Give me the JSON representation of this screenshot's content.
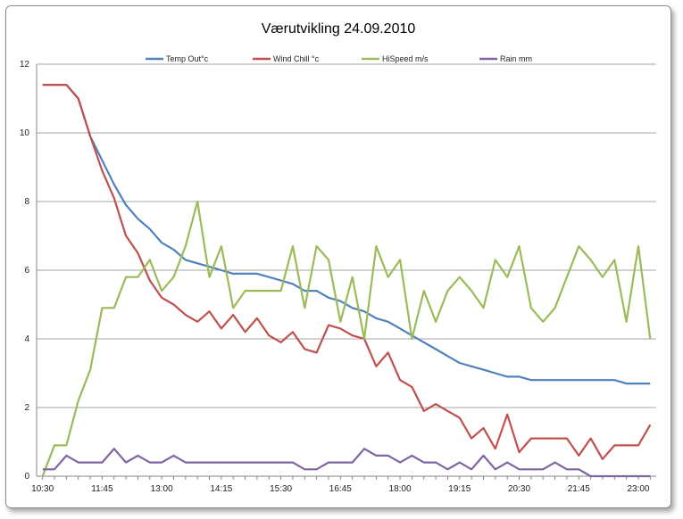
{
  "chart_data": {
    "type": "line",
    "title": "Værutvikling 24.09.2010",
    "xlabel": "",
    "ylabel": "",
    "ylim": [
      0,
      12
    ],
    "yticks": [
      "0",
      "2",
      "4",
      "6",
      "8",
      "10",
      "12"
    ],
    "x_tick_labels": [
      "10:30",
      "11:45",
      "13:00",
      "14:15",
      "15:30",
      "16:45",
      "18:00",
      "19:15",
      "20:30",
      "21:45",
      "23:00"
    ],
    "x": [
      "10:30",
      "10:45",
      "11:00",
      "11:15",
      "11:30",
      "11:45",
      "12:00",
      "12:15",
      "12:30",
      "12:45",
      "13:00",
      "13:15",
      "13:30",
      "13:45",
      "14:00",
      "14:15",
      "14:30",
      "14:45",
      "15:00",
      "15:15",
      "15:30",
      "15:45",
      "16:00",
      "16:15",
      "16:30",
      "16:45",
      "17:00",
      "17:15",
      "17:30",
      "17:45",
      "18:00",
      "18:15",
      "18:30",
      "18:45",
      "19:00",
      "19:15",
      "19:30",
      "19:45",
      "20:00",
      "20:15",
      "20:30",
      "20:45",
      "21:00",
      "21:15",
      "21:30",
      "21:45",
      "22:00",
      "22:15",
      "22:30",
      "22:45",
      "23:00",
      "23:15"
    ],
    "grid": true,
    "legend_position": "top",
    "series": [
      {
        "name": "Temp Out°c",
        "color": "#4f81bd",
        "values": [
          11.4,
          11.4,
          11.4,
          11.0,
          9.9,
          9.2,
          8.5,
          7.9,
          7.5,
          7.2,
          6.8,
          6.6,
          6.3,
          6.2,
          6.1,
          6.0,
          5.9,
          5.9,
          5.9,
          5.8,
          5.7,
          5.6,
          5.4,
          5.4,
          5.2,
          5.1,
          4.9,
          4.8,
          4.6,
          4.5,
          4.3,
          4.1,
          3.9,
          3.7,
          3.5,
          3.3,
          3.2,
          3.1,
          3.0,
          2.9,
          2.9,
          2.8,
          2.8,
          2.8,
          2.8,
          2.8,
          2.8,
          2.8,
          2.8,
          2.7,
          2.7,
          2.7
        ]
      },
      {
        "name": "Wind Chill  °c",
        "color": "#c0504d",
        "values": [
          11.4,
          11.4,
          11.4,
          11.0,
          9.9,
          8.9,
          8.1,
          7.0,
          6.5,
          5.7,
          5.2,
          5.0,
          4.7,
          4.5,
          4.8,
          4.3,
          4.7,
          4.2,
          4.6,
          4.1,
          3.9,
          4.2,
          3.7,
          3.6,
          4.4,
          4.3,
          4.1,
          4.0,
          3.2,
          3.6,
          2.8,
          2.6,
          1.9,
          2.1,
          1.9,
          1.7,
          1.1,
          1.4,
          0.8,
          1.8,
          0.7,
          1.1,
          1.1,
          1.1,
          1.1,
          0.6,
          1.1,
          0.5,
          0.9,
          0.9,
          0.9,
          1.5
        ]
      },
      {
        "name": "HiSpeed m/s",
        "color": "#9bbb59",
        "values": [
          0.0,
          0.9,
          0.9,
          2.2,
          3.1,
          4.9,
          4.9,
          5.8,
          5.8,
          6.3,
          5.4,
          5.8,
          6.7,
          8.0,
          5.8,
          6.7,
          4.9,
          5.4,
          5.4,
          5.4,
          5.4,
          6.7,
          4.9,
          6.7,
          6.3,
          4.5,
          5.8,
          4.0,
          6.7,
          5.8,
          6.3,
          4.0,
          5.4,
          4.5,
          5.4,
          5.8,
          5.4,
          4.9,
          6.3,
          5.8,
          6.7,
          4.9,
          4.5,
          4.9,
          5.8,
          6.7,
          6.3,
          5.8,
          6.3,
          4.5,
          6.7,
          4.0
        ]
      },
      {
        "name": "Rain mm",
        "color": "#8064a2",
        "values": [
          0.2,
          0.2,
          0.6,
          0.4,
          0.4,
          0.4,
          0.8,
          0.4,
          0.6,
          0.4,
          0.4,
          0.6,
          0.4,
          0.4,
          0.4,
          0.4,
          0.4,
          0.4,
          0.4,
          0.4,
          0.4,
          0.4,
          0.2,
          0.2,
          0.4,
          0.4,
          0.4,
          0.8,
          0.6,
          0.6,
          0.4,
          0.6,
          0.4,
          0.4,
          0.2,
          0.4,
          0.2,
          0.6,
          0.2,
          0.4,
          0.2,
          0.2,
          0.2,
          0.4,
          0.2,
          0.2,
          0.0,
          0.0,
          0.0,
          0.0,
          0.0,
          0.0
        ]
      }
    ]
  }
}
